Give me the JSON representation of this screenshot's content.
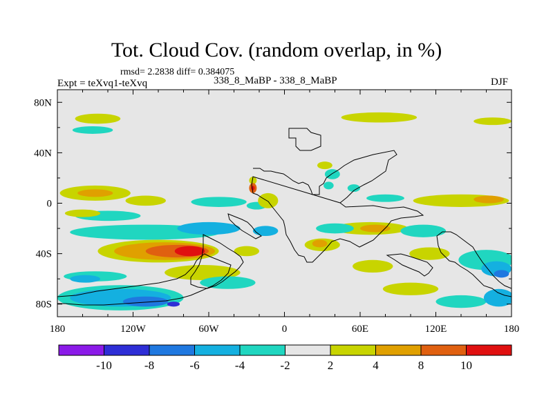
{
  "header": {
    "title": "Tot. Cloud Cov. (random overlap, in %)",
    "stats": "rmsd= 2.2838 diff= 0.384075",
    "expt": "Expt = teXvq1-teXvq",
    "subtitle": "338_8_MaBP - 338_8_MaBP",
    "season": "DJF"
  },
  "colors": {
    "background_field": "#e6e6e6",
    "coastline": "#000000",
    "frame": "#000000"
  },
  "chart_data": {
    "type": "heatmap",
    "title": "Tot. Cloud Cov. (random overlap, in %)",
    "subtitle": "338_8_MaBP - 338_8_MaBP",
    "season": "DJF",
    "xlim": [
      -180,
      180
    ],
    "ylim": [
      -90,
      90
    ],
    "x_ticks": [
      {
        "value": -180,
        "label": "180"
      },
      {
        "value": -120,
        "label": "120W"
      },
      {
        "value": -60,
        "label": "60W"
      },
      {
        "value": 0,
        "label": "0"
      },
      {
        "value": 60,
        "label": "60E"
      },
      {
        "value": 120,
        "label": "120E"
      },
      {
        "value": 180,
        "label": "180"
      }
    ],
    "y_ticks": [
      {
        "value": 80,
        "label": "80N"
      },
      {
        "value": 40,
        "label": "40N"
      },
      {
        "value": 0,
        "label": "0"
      },
      {
        "value": -40,
        "label": "40S"
      },
      {
        "value": -80,
        "label": "80S"
      }
    ],
    "colorbar": {
      "colors": [
        "#8b1ae8",
        "#2e2ed6",
        "#1f78e0",
        "#14b0e0",
        "#20d6c0",
        "#e6e6e6",
        "#c8d400",
        "#e0a000",
        "#e06010",
        "#e01010"
      ],
      "boundaries": [
        -10,
        -8,
        -6,
        -4,
        -2,
        2,
        4,
        8,
        10
      ],
      "labels": [
        "-10",
        "-8",
        "-6",
        "-4",
        "-2",
        "2",
        "4",
        "8",
        "10"
      ]
    },
    "features": [
      {
        "level": 2,
        "lon": -150,
        "lat": 8,
        "dlon": 28,
        "dlat": 6
      },
      {
        "level": 4,
        "lon": -150,
        "lat": 8,
        "dlon": 14,
        "dlat": 3
      },
      {
        "level": 2,
        "lon": -110,
        "lat": 2,
        "dlon": 16,
        "dlat": 4
      },
      {
        "level": -2,
        "lon": -140,
        "lat": -10,
        "dlon": 26,
        "dlat": 4
      },
      {
        "level": 2,
        "lon": -160,
        "lat": -8,
        "dlon": 14,
        "dlat": 3
      },
      {
        "level": 2,
        "lon": -148,
        "lat": 67,
        "dlon": 18,
        "dlat": 4
      },
      {
        "level": -2,
        "lon": -152,
        "lat": 58,
        "dlon": 16,
        "dlat": 3
      },
      {
        "level": 2,
        "lon": -100,
        "lat": -38,
        "dlon": 48,
        "dlat": 9
      },
      {
        "level": 4,
        "lon": -95,
        "lat": -38,
        "dlon": 40,
        "dlat": 7
      },
      {
        "level": 8,
        "lon": -85,
        "lat": -38,
        "dlon": 25,
        "dlat": 5
      },
      {
        "level": 10,
        "lon": -75,
        "lat": -38,
        "dlon": 12,
        "dlat": 4
      },
      {
        "level": -2,
        "lon": -110,
        "lat": -23,
        "dlon": 60,
        "dlat": 6
      },
      {
        "level": -4,
        "lon": -60,
        "lat": -20,
        "dlon": 25,
        "dlat": 5
      },
      {
        "level": -4,
        "lon": -15,
        "lat": -22,
        "dlon": 10,
        "dlat": 4
      },
      {
        "level": -2,
        "lon": -130,
        "lat": -75,
        "dlon": 50,
        "dlat": 10
      },
      {
        "level": -4,
        "lon": -130,
        "lat": -75,
        "dlon": 40,
        "dlat": 7
      },
      {
        "level": -6,
        "lon": -110,
        "lat": -78,
        "dlon": 18,
        "dlat": 4
      },
      {
        "level": -8,
        "lon": -88,
        "lat": -80,
        "dlon": 5,
        "dlat": 2
      },
      {
        "level": -2,
        "lon": -150,
        "lat": -58,
        "dlon": 25,
        "dlat": 4
      },
      {
        "level": -4,
        "lon": -158,
        "lat": -60,
        "dlon": 12,
        "dlat": 3
      },
      {
        "level": 2,
        "lon": -65,
        "lat": -55,
        "dlon": 30,
        "dlat": 6
      },
      {
        "level": 2,
        "lon": -30,
        "lat": -38,
        "dlon": 10,
        "dlat": 4
      },
      {
        "level": -2,
        "lon": -45,
        "lat": -63,
        "dlon": 22,
        "dlat": 5
      },
      {
        "level": -2,
        "lon": -52,
        "lat": 1,
        "dlon": 22,
        "dlat": 4
      },
      {
        "level": -2,
        "lon": -22,
        "lat": -2,
        "dlon": 8,
        "dlat": 3
      },
      {
        "level": 2,
        "lon": -13,
        "lat": 2,
        "dlon": 8,
        "dlat": 6
      },
      {
        "level": 8,
        "lon": -25,
        "lat": 12,
        "dlon": 3,
        "dlat": 4
      },
      {
        "level": 10,
        "lon": -25,
        "lat": 12,
        "dlon": 1.4,
        "dlat": 1.8
      },
      {
        "level": 2,
        "lon": -25,
        "lat": 18,
        "dlon": 3,
        "dlat": 3
      },
      {
        "level": -2,
        "lon": 38,
        "lat": 23,
        "dlon": 6,
        "dlat": 4
      },
      {
        "level": 2,
        "lon": 32,
        "lat": 30,
        "dlon": 6,
        "dlat": 3
      },
      {
        "level": -2,
        "lon": 55,
        "lat": 12,
        "dlon": 5,
        "dlat": 3
      },
      {
        "level": -2,
        "lon": 35,
        "lat": 14,
        "dlon": 4,
        "dlat": 3
      },
      {
        "level": 2,
        "lon": 140,
        "lat": 2,
        "dlon": 38,
        "dlat": 5
      },
      {
        "level": 4,
        "lon": 162,
        "lat": 3,
        "dlon": 12,
        "dlat": 3
      },
      {
        "level": -2,
        "lon": 80,
        "lat": 4,
        "dlon": 15,
        "dlat": 3
      },
      {
        "level": 2,
        "lon": 68,
        "lat": -20,
        "dlon": 30,
        "dlat": 5
      },
      {
        "level": 4,
        "lon": 72,
        "lat": -20,
        "dlon": 12,
        "dlat": 3
      },
      {
        "level": -2,
        "lon": 40,
        "lat": -20,
        "dlon": 15,
        "dlat": 4
      },
      {
        "level": -2,
        "lon": 110,
        "lat": -22,
        "dlon": 18,
        "dlat": 5
      },
      {
        "level": 2,
        "lon": 30,
        "lat": -33,
        "dlon": 14,
        "dlat": 5
      },
      {
        "level": 4,
        "lon": 28,
        "lat": -32,
        "dlon": 6,
        "dlat": 3
      },
      {
        "level": 2,
        "lon": 70,
        "lat": -50,
        "dlon": 16,
        "dlat": 5
      },
      {
        "level": 2,
        "lon": 115,
        "lat": -40,
        "dlon": 16,
        "dlat": 5
      },
      {
        "level": -2,
        "lon": 160,
        "lat": -45,
        "dlon": 22,
        "dlat": 8
      },
      {
        "level": -4,
        "lon": 168,
        "lat": -52,
        "dlon": 12,
        "dlat": 6
      },
      {
        "level": -6,
        "lon": 172,
        "lat": -56,
        "dlon": 6,
        "dlat": 3
      },
      {
        "level": -2,
        "lon": 140,
        "lat": -78,
        "dlon": 20,
        "dlat": 5
      },
      {
        "level": -4,
        "lon": 170,
        "lat": -75,
        "dlon": 12,
        "dlat": 7
      },
      {
        "level": 2,
        "lon": 100,
        "lat": -68,
        "dlon": 22,
        "dlat": 5
      },
      {
        "level": 2,
        "lon": 75,
        "lat": 68,
        "dlon": 30,
        "dlat": 4
      },
      {
        "level": 2,
        "lon": 165,
        "lat": 65,
        "dlon": 15,
        "dlat": 3
      }
    ]
  }
}
